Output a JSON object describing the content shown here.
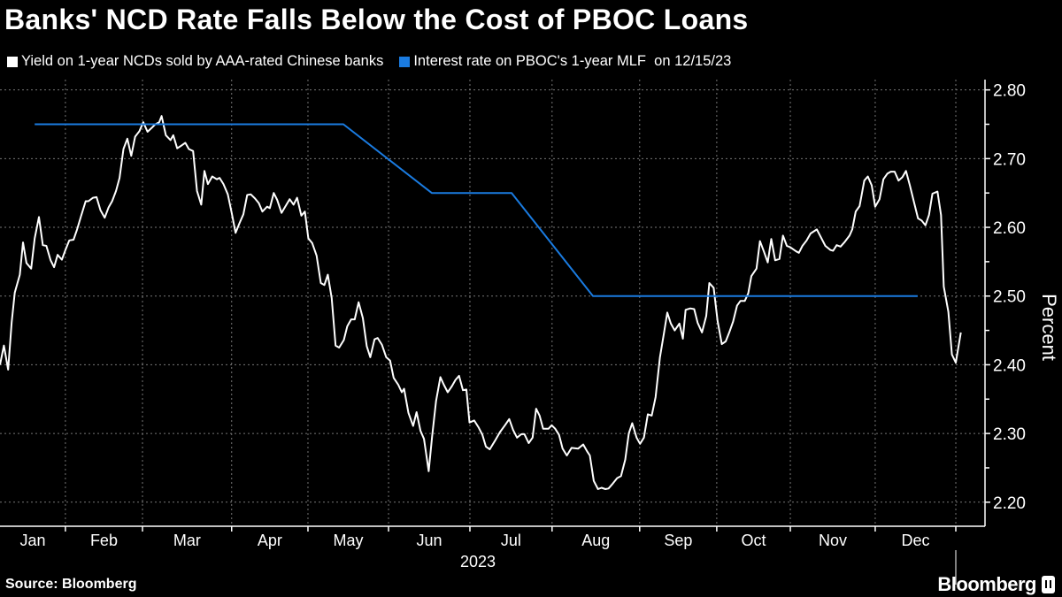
{
  "title": "Banks' NCD Rate Falls Below the Cost of PBOC Loans",
  "source": "Source: Bloomberg",
  "logo": "Bloomberg",
  "colors": {
    "ncd": "#ffffff",
    "mlf": "#1a7be0",
    "background": "#000000",
    "grid": "#777777"
  },
  "chart_data": {
    "type": "line",
    "title": "Banks' NCD Rate Falls Below the Cost of PBOC Loans",
    "xlabel": "2023",
    "ylabel": "Percent",
    "x_unit": "trading day index of 2023",
    "xlim": [
      0,
      253
    ],
    "ylim": [
      2.165,
      2.815
    ],
    "yticks": [
      2.2,
      2.3,
      2.4,
      2.5,
      2.6,
      2.7,
      2.8
    ],
    "ytick_labels": [
      "2.20",
      "2.30",
      "2.40",
      "2.50",
      "2.60",
      "2.70",
      "2.80"
    ],
    "grid": true,
    "legend_position": "top-left",
    "month_labels": [
      "Jan",
      "Feb",
      "Mar",
      "Apr",
      "May",
      "Jun",
      "Jul",
      "Aug",
      "Sep",
      "Oct",
      "Nov",
      "Dec"
    ],
    "month_boundaries": [
      0,
      16.8,
      36.6,
      59.5,
      79.1,
      99.8,
      120.7,
      141.8,
      164.3,
      184.1,
      203,
      224.8,
      245.5
    ],
    "series": [
      {
        "name": "Yield on 1-year NCDs sold by AAA-rated Chinese banks",
        "color": "#ffffff",
        "points": [
          [
            0,
            2.4
          ],
          [
            1.0,
            2.428
          ],
          [
            2.1,
            2.393
          ],
          [
            3.0,
            2.462
          ],
          [
            3.8,
            2.505
          ],
          [
            5.1,
            2.531
          ],
          [
            5.9,
            2.578
          ],
          [
            6.8,
            2.548
          ],
          [
            8.0,
            2.54
          ],
          [
            8.9,
            2.584
          ],
          [
            10.0,
            2.615
          ],
          [
            11.0,
            2.574
          ],
          [
            11.9,
            2.573
          ],
          [
            13.0,
            2.552
          ],
          [
            13.9,
            2.542
          ],
          [
            14.8,
            2.56
          ],
          [
            15.9,
            2.553
          ],
          [
            16.8,
            2.567
          ],
          [
            17.8,
            2.581
          ],
          [
            18.9,
            2.582
          ],
          [
            19.8,
            2.597
          ],
          [
            20.8,
            2.616
          ],
          [
            22.0,
            2.638
          ],
          [
            22.7,
            2.638
          ],
          [
            23.9,
            2.643
          ],
          [
            24.8,
            2.644
          ],
          [
            25.8,
            2.625
          ],
          [
            26.9,
            2.614
          ],
          [
            27.9,
            2.629
          ],
          [
            28.8,
            2.638
          ],
          [
            29.8,
            2.653
          ],
          [
            30.7,
            2.672
          ],
          [
            31.7,
            2.714
          ],
          [
            32.7,
            2.729
          ],
          [
            33.7,
            2.704
          ],
          [
            34.7,
            2.732
          ],
          [
            35.8,
            2.74
          ],
          [
            36.8,
            2.753
          ],
          [
            37.9,
            2.739
          ],
          [
            39.0,
            2.745
          ],
          [
            39.9,
            2.75
          ],
          [
            40.9,
            2.753
          ],
          [
            41.5,
            2.762
          ],
          [
            42.6,
            2.734
          ],
          [
            43.8,
            2.727
          ],
          [
            44.5,
            2.734
          ],
          [
            45.5,
            2.715
          ],
          [
            46.6,
            2.719
          ],
          [
            47.6,
            2.723
          ],
          [
            48.5,
            2.714
          ],
          [
            49.6,
            2.711
          ],
          [
            50.6,
            2.653
          ],
          [
            51.7,
            2.633
          ],
          [
            52.5,
            2.682
          ],
          [
            53.4,
            2.663
          ],
          [
            54.5,
            2.674
          ],
          [
            55.7,
            2.67
          ],
          [
            56.4,
            2.672
          ],
          [
            57.4,
            2.663
          ],
          [
            58.5,
            2.648
          ],
          [
            59.5,
            2.621
          ],
          [
            60.5,
            2.592
          ],
          [
            61.5,
            2.606
          ],
          [
            62.5,
            2.619
          ],
          [
            63.5,
            2.647
          ],
          [
            64.4,
            2.648
          ],
          [
            65.5,
            2.642
          ],
          [
            66.5,
            2.635
          ],
          [
            67.4,
            2.623
          ],
          [
            68.6,
            2.63
          ],
          [
            69.3,
            2.628
          ],
          [
            70.3,
            2.65
          ],
          [
            71.2,
            2.64
          ],
          [
            72.3,
            2.621
          ],
          [
            74.4,
            2.641
          ],
          [
            75.4,
            2.633
          ],
          [
            76.3,
            2.643
          ],
          [
            77.4,
            2.617
          ],
          [
            78.3,
            2.623
          ],
          [
            79.2,
            2.584
          ],
          [
            80.2,
            2.577
          ],
          [
            81.3,
            2.559
          ],
          [
            82.4,
            2.519
          ],
          [
            83.3,
            2.516
          ],
          [
            84.2,
            2.531
          ],
          [
            85.2,
            2.497
          ],
          [
            86.2,
            2.428
          ],
          [
            87.1,
            2.425
          ],
          [
            88.3,
            2.436
          ],
          [
            89.2,
            2.456
          ],
          [
            90.2,
            2.466
          ],
          [
            91.1,
            2.466
          ],
          [
            92.1,
            2.491
          ],
          [
            93.2,
            2.468
          ],
          [
            94.2,
            2.427
          ],
          [
            95.1,
            2.411
          ],
          [
            96.2,
            2.437
          ],
          [
            97.0,
            2.439
          ],
          [
            98.1,
            2.429
          ],
          [
            99.2,
            2.411
          ],
          [
            100.2,
            2.406
          ],
          [
            101.1,
            2.381
          ],
          [
            102.3,
            2.371
          ],
          [
            103.2,
            2.36
          ],
          [
            103.8,
            2.365
          ],
          [
            104.9,
            2.33
          ],
          [
            106.1,
            2.311
          ],
          [
            107.0,
            2.331
          ],
          [
            108.0,
            2.304
          ],
          [
            108.9,
            2.292
          ],
          [
            110.1,
            2.245
          ],
          [
            111.0,
            2.296
          ],
          [
            112.0,
            2.347
          ],
          [
            113.1,
            2.382
          ],
          [
            114.0,
            2.371
          ],
          [
            115.0,
            2.36
          ],
          [
            116.1,
            2.369
          ],
          [
            117.0,
            2.378
          ],
          [
            117.9,
            2.384
          ],
          [
            118.9,
            2.363
          ],
          [
            119.8,
            2.364
          ],
          [
            120.6,
            2.316
          ],
          [
            121.8,
            2.319
          ],
          [
            122.9,
            2.309
          ],
          [
            123.9,
            2.298
          ],
          [
            124.8,
            2.281
          ],
          [
            125.8,
            2.277
          ],
          [
            127.1,
            2.289
          ],
          [
            128.4,
            2.302
          ],
          [
            129.7,
            2.312
          ],
          [
            130.8,
            2.321
          ],
          [
            131.8,
            2.305
          ],
          [
            132.8,
            2.294
          ],
          [
            133.9,
            2.299
          ],
          [
            134.7,
            2.299
          ],
          [
            135.8,
            2.286
          ],
          [
            136.8,
            2.294
          ],
          [
            137.7,
            2.336
          ],
          [
            138.6,
            2.326
          ],
          [
            139.5,
            2.307
          ],
          [
            140.9,
            2.307
          ],
          [
            141.7,
            2.312
          ],
          [
            142.6,
            2.307
          ],
          [
            143.6,
            2.298
          ],
          [
            144.5,
            2.278
          ],
          [
            145.6,
            2.268
          ],
          [
            146.8,
            2.279
          ],
          [
            148.5,
            2.278
          ],
          [
            149.8,
            2.284
          ],
          [
            150.8,
            2.274
          ],
          [
            151.5,
            2.268
          ],
          [
            152.5,
            2.231
          ],
          [
            153.6,
            2.219
          ],
          [
            154.5,
            2.221
          ],
          [
            155.5,
            2.219
          ],
          [
            156.3,
            2.22
          ],
          [
            157.4,
            2.227
          ],
          [
            158.5,
            2.235
          ],
          [
            159.5,
            2.238
          ],
          [
            160.6,
            2.262
          ],
          [
            161.5,
            2.3
          ],
          [
            162.4,
            2.315
          ],
          [
            163.5,
            2.294
          ],
          [
            164.4,
            2.285
          ],
          [
            165.4,
            2.294
          ],
          [
            166.4,
            2.328
          ],
          [
            167.4,
            2.326
          ],
          [
            168.4,
            2.353
          ],
          [
            169.5,
            2.411
          ],
          [
            170.5,
            2.445
          ],
          [
            171.4,
            2.476
          ],
          [
            172.3,
            2.46
          ],
          [
            173.3,
            2.45
          ],
          [
            174.5,
            2.46
          ],
          [
            175.4,
            2.438
          ],
          [
            176.1,
            2.48
          ],
          [
            177.3,
            2.482
          ],
          [
            178.3,
            2.481
          ],
          [
            179.2,
            2.461
          ],
          [
            180.3,
            2.447
          ],
          [
            181.4,
            2.471
          ],
          [
            182.2,
            2.519
          ],
          [
            183.3,
            2.512
          ],
          [
            184.3,
            2.464
          ],
          [
            185.4,
            2.43
          ],
          [
            186.4,
            2.434
          ],
          [
            187.3,
            2.447
          ],
          [
            188.3,
            2.463
          ],
          [
            189.3,
            2.486
          ],
          [
            190.2,
            2.493
          ],
          [
            191.3,
            2.493
          ],
          [
            192.2,
            2.504
          ],
          [
            193.0,
            2.529
          ],
          [
            194.3,
            2.54
          ],
          [
            195.2,
            2.58
          ],
          [
            196.2,
            2.565
          ],
          [
            197.2,
            2.549
          ],
          [
            198.1,
            2.583
          ],
          [
            199.1,
            2.552
          ],
          [
            200.2,
            2.554
          ],
          [
            201.1,
            2.588
          ],
          [
            202.1,
            2.573
          ],
          [
            203.0,
            2.571
          ],
          [
            204.5,
            2.565
          ],
          [
            205.2,
            2.563
          ],
          [
            206.1,
            2.573
          ],
          [
            207.2,
            2.581
          ],
          [
            208.2,
            2.591
          ],
          [
            209.8,
            2.597
          ],
          [
            210.8,
            2.586
          ],
          [
            212.0,
            2.573
          ],
          [
            213.3,
            2.567
          ],
          [
            214.0,
            2.566
          ],
          [
            214.9,
            2.574
          ],
          [
            215.9,
            2.572
          ],
          [
            217.0,
            2.579
          ],
          [
            218.2,
            2.588
          ],
          [
            218.9,
            2.597
          ],
          [
            219.8,
            2.623
          ],
          [
            220.8,
            2.631
          ],
          [
            222.0,
            2.668
          ],
          [
            222.9,
            2.674
          ],
          [
            223.9,
            2.661
          ],
          [
            224.8,
            2.63
          ],
          [
            225.9,
            2.641
          ],
          [
            226.9,
            2.67
          ],
          [
            227.9,
            2.678
          ],
          [
            228.8,
            2.681
          ],
          [
            229.8,
            2.681
          ],
          [
            230.8,
            2.668
          ],
          [
            231.8,
            2.673
          ],
          [
            232.7,
            2.682
          ],
          [
            233.7,
            2.661
          ],
          [
            234.7,
            2.638
          ],
          [
            235.8,
            2.613
          ],
          [
            236.7,
            2.61
          ],
          [
            237.7,
            2.603
          ],
          [
            238.6,
            2.618
          ],
          [
            239.5,
            2.649
          ],
          [
            240.8,
            2.652
          ],
          [
            241.7,
            2.618
          ],
          [
            242.4,
            2.514
          ],
          [
            243.6,
            2.477
          ],
          [
            244.5,
            2.415
          ],
          [
            245.5,
            2.403
          ],
          [
            246.8,
            2.447
          ]
        ]
      },
      {
        "name": "Interest rate on PBOC's 1-year MLF  on 12/15/23",
        "color": "#1a7be0",
        "points": [
          [
            8.9,
            2.75
          ],
          [
            88.2,
            2.75
          ],
          [
            110.9,
            2.65
          ],
          [
            131.4,
            2.65
          ],
          [
            152.3,
            2.5
          ],
          [
            235.7,
            2.5
          ]
        ]
      }
    ]
  }
}
